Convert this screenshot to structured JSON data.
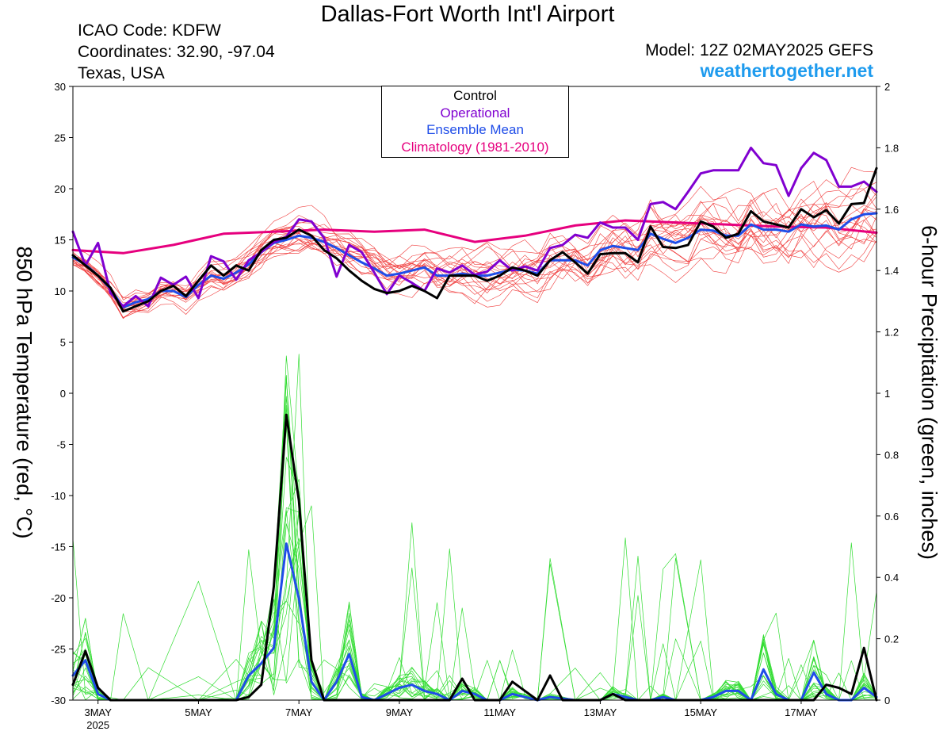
{
  "header": {
    "title": "Dallas-Fort Worth Int'l Airport",
    "icao": "ICAO Code: KDFW",
    "coords": "Coordinates: 32.90, -97.04",
    "region": "Texas, USA",
    "model": "Model: 12Z 02MAY2025 GEFS",
    "site": "weathertogether.net"
  },
  "colors": {
    "control": "#000000",
    "operational": "#8000d0",
    "ensemble_mean": "#1f4de8",
    "climatology": "#e6007e",
    "members_temp": "#f03c3c",
    "members_precip": "#33dd33",
    "site": "#1e9bee"
  },
  "chart_data": {
    "type": "line",
    "xlabel": "",
    "ylabel_left": "850 hPa Temperature (red, °C)",
    "ylabel_right": "6-hour Precipitation (green, inches)",
    "ylim_left": [
      -30,
      30
    ],
    "ylim_right": [
      0,
      2
    ],
    "yticks_left": [
      30,
      25,
      20,
      15,
      10,
      5,
      0,
      -5,
      -10,
      -15,
      -20,
      -25,
      -30
    ],
    "yticks_right": [
      2,
      1.8,
      1.6,
      1.4,
      1.2,
      1,
      0.8,
      0.6,
      0.4,
      0.2,
      0
    ],
    "xticks": [
      {
        "label": "3MAY",
        "sub": "2025",
        "day": 3
      },
      {
        "label": "5MAY",
        "day": 5
      },
      {
        "label": "7MAY",
        "day": 7
      },
      {
        "label": "9MAY",
        "day": 9
      },
      {
        "label": "11MAY",
        "day": 11
      },
      {
        "label": "13MAY",
        "day": 13
      },
      {
        "label": "15MAY",
        "day": 15
      },
      {
        "label": "17MAY",
        "day": 17
      }
    ],
    "x_range_days": [
      2.5,
      18.5
    ],
    "legend": [
      "Control",
      "Operational",
      "Ensemble Mean",
      "Climatology (1981-2010)"
    ],
    "series": [
      {
        "name": "Climatology (1981-2010)",
        "axis": "left",
        "x": [
          2.5,
          3.5,
          4.5,
          5.5,
          6.5,
          7.5,
          8.5,
          9.5,
          10.5,
          11.5,
          12.5,
          13.5,
          14.5,
          15.5,
          16.5,
          17.5,
          18.5
        ],
        "values": [
          14.0,
          13.7,
          14.5,
          15.6,
          15.8,
          16.0,
          15.8,
          16.0,
          14.8,
          15.4,
          16.4,
          16.9,
          16.7,
          16.5,
          16.3,
          16.2,
          15.7
        ]
      },
      {
        "name": "Control",
        "axis": "left",
        "x": [
          2.5,
          2.75,
          3.0,
          3.25,
          3.5,
          3.75,
          4.0,
          4.25,
          4.5,
          4.75,
          5.0,
          5.25,
          5.5,
          5.75,
          6.0,
          6.25,
          6.5,
          6.75,
          7.0,
          7.25,
          7.5,
          7.75,
          8.0,
          8.25,
          8.5,
          8.75,
          9.0,
          9.25,
          9.5,
          9.75,
          10.0,
          10.25,
          10.5,
          10.75,
          11.0,
          11.25,
          11.5,
          11.75,
          12.0,
          12.25,
          12.5,
          12.75,
          13.0,
          13.25,
          13.5,
          13.75,
          14.0,
          14.25,
          14.5,
          14.75,
          15.0,
          15.25,
          15.5,
          15.75,
          16.0,
          16.25,
          16.5,
          16.75,
          17.0,
          17.25,
          17.5,
          17.75,
          18.0,
          18.25,
          18.5
        ],
        "values": [
          13.5,
          12.5,
          11.5,
          10.3,
          8.0,
          8.5,
          9.0,
          10.0,
          10.5,
          9.5,
          11.0,
          12.5,
          11.5,
          12.5,
          12.0,
          14.0,
          15.0,
          15.2,
          16.0,
          15.4,
          14.0,
          13.2,
          12.0,
          11.0,
          10.2,
          9.8,
          10.0,
          10.5,
          10.0,
          9.3,
          11.5,
          11.5,
          11.5,
          11.0,
          11.5,
          12.3,
          12.0,
          11.5,
          13.0,
          13.8,
          12.8,
          11.7,
          13.6,
          13.7,
          13.7,
          12.8,
          16.3,
          14.3,
          14.2,
          14.5,
          16.8,
          16.3,
          15.2,
          15.6,
          17.8,
          16.8,
          16.5,
          16.2,
          18.0,
          17.2,
          17.9,
          16.6,
          18.5,
          18.6,
          22.0
        ]
      },
      {
        "name": "Operational",
        "axis": "left",
        "x": [
          2.5,
          2.75,
          3.0,
          3.25,
          3.5,
          3.75,
          4.0,
          4.25,
          4.5,
          4.75,
          5.0,
          5.25,
          5.5,
          5.75,
          6.0,
          6.25,
          6.5,
          6.75,
          7.0,
          7.25,
          7.5,
          7.75,
          8.0,
          8.25,
          8.5,
          8.75,
          9.0,
          9.25,
          9.5,
          9.75,
          10.0,
          10.25,
          10.5,
          10.75,
          11.0,
          11.25,
          11.5,
          11.75,
          12.0,
          12.25,
          12.5,
          12.75,
          13.0,
          13.25,
          13.5,
          13.75,
          14.0,
          14.25,
          14.5,
          14.75,
          15.0,
          15.25,
          15.5,
          15.75,
          16.0,
          16.25,
          16.5,
          16.75,
          17.0,
          17.25,
          17.5,
          17.75,
          18.0,
          18.25,
          18.5
        ],
        "values": [
          15.8,
          12.5,
          14.7,
          9.8,
          8.5,
          9.5,
          8.5,
          11.3,
          10.6,
          11.4,
          9.3,
          13.4,
          12.9,
          11.1,
          13.0,
          13.8,
          14.8,
          15.3,
          17.0,
          16.8,
          15.2,
          11.4,
          14.5,
          13.8,
          11.8,
          9.7,
          11.5,
          10.8,
          10.0,
          12.2,
          11.8,
          12.5,
          11.6,
          11.9,
          13.0,
          12.0,
          12.4,
          12.0,
          14.2,
          14.5,
          15.5,
          15.2,
          16.7,
          16.2,
          16.2,
          15.0,
          18.5,
          18.7,
          18.0,
          19.7,
          21.5,
          21.8,
          21.8,
          21.8,
          24.0,
          22.5,
          22.3,
          19.3,
          22.0,
          23.5,
          22.8,
          20.2,
          20.2,
          20.7,
          19.7
        ]
      },
      {
        "name": "Ensemble Mean",
        "axis": "left",
        "x": [
          2.5,
          2.75,
          3.0,
          3.25,
          3.5,
          3.75,
          4.0,
          4.25,
          4.5,
          4.75,
          5.0,
          5.25,
          5.5,
          5.75,
          6.0,
          6.25,
          6.5,
          6.75,
          7.0,
          7.25,
          7.5,
          7.75,
          8.0,
          8.25,
          8.5,
          8.75,
          9.0,
          9.25,
          9.5,
          9.75,
          10.0,
          10.25,
          10.5,
          10.75,
          11.0,
          11.25,
          11.5,
          11.75,
          12.0,
          12.25,
          12.5,
          12.75,
          13.0,
          13.25,
          13.5,
          13.75,
          14.0,
          14.25,
          14.5,
          14.75,
          15.0,
          15.25,
          15.5,
          15.75,
          16.0,
          16.25,
          16.5,
          16.75,
          17.0,
          17.25,
          17.5,
          17.75,
          18.0,
          18.25,
          18.5
        ],
        "values": [
          13.3,
          12.6,
          11.5,
          10.2,
          8.4,
          8.9,
          9.2,
          10.0,
          10.0,
          9.4,
          10.6,
          11.5,
          11.2,
          11.8,
          12.6,
          13.8,
          14.7,
          15.0,
          15.4,
          15.2,
          14.8,
          14.2,
          13.5,
          12.8,
          12.2,
          11.5,
          11.7,
          12.0,
          12.3,
          11.5,
          11.5,
          11.7,
          11.5,
          11.5,
          11.8,
          12.1,
          12.0,
          11.7,
          13.0,
          13.0,
          13.0,
          12.5,
          14.0,
          14.4,
          14.2,
          14.0,
          15.6,
          15.1,
          14.7,
          15.2,
          16.0,
          15.9,
          15.4,
          15.4,
          16.5,
          16.0,
          16.0,
          15.8,
          16.5,
          16.3,
          16.4,
          16.0,
          17.0,
          17.5,
          17.6
        ]
      },
      {
        "name": "Ensemble Mean precipitation",
        "axis": "right",
        "x": [
          2.5,
          2.75,
          3.0,
          3.25,
          3.5,
          4.0,
          5.0,
          5.75,
          6.0,
          6.25,
          6.5,
          6.75,
          7.0,
          7.25,
          7.5,
          7.75,
          8.0,
          8.25,
          8.5,
          8.75,
          9.0,
          9.25,
          9.5,
          9.75,
          10.0,
          10.25,
          10.5,
          10.75,
          11.0,
          11.25,
          11.5,
          11.75,
          12.0,
          12.5,
          13.0,
          13.25,
          13.5,
          13.75,
          14.0,
          14.25,
          14.5,
          15.0,
          15.25,
          15.5,
          15.75,
          16.0,
          16.25,
          16.5,
          16.75,
          17.0,
          17.25,
          17.5,
          17.75,
          18.0,
          18.25,
          18.5
        ],
        "values": [
          0.08,
          0.13,
          0.02,
          0.0,
          0.0,
          0.0,
          0.0,
          0.0,
          0.08,
          0.12,
          0.17,
          0.51,
          0.33,
          0.06,
          0.0,
          0.06,
          0.15,
          0.01,
          0.0,
          0.02,
          0.04,
          0.05,
          0.03,
          0.02,
          0.0,
          0.03,
          0.02,
          0.0,
          0.0,
          0.02,
          0.01,
          0.0,
          0.01,
          0.0,
          0.0,
          0.02,
          0.01,
          0.0,
          0.0,
          0.01,
          0.0,
          0.0,
          0.01,
          0.03,
          0.03,
          0.0,
          0.1,
          0.02,
          0.0,
          0.0,
          0.09,
          0.02,
          0.0,
          0.0,
          0.04,
          0.01
        ]
      },
      {
        "name": "Control precipitation",
        "axis": "right",
        "x": [
          2.5,
          2.75,
          3.0,
          3.25,
          3.5,
          4.0,
          5.0,
          5.75,
          6.0,
          6.25,
          6.5,
          6.75,
          7.0,
          7.25,
          7.5,
          7.75,
          8.0,
          8.5,
          9.0,
          9.5,
          9.75,
          10.0,
          10.25,
          10.5,
          10.75,
          11.0,
          11.25,
          11.5,
          11.75,
          12.0,
          12.25,
          12.5,
          13.0,
          13.25,
          13.5,
          14.0,
          15.0,
          16.0,
          16.5,
          17.0,
          17.25,
          17.5,
          17.75,
          18.0,
          18.25,
          18.5
        ],
        "values": [
          0.05,
          0.16,
          0.04,
          0.0,
          0.0,
          0.0,
          0.0,
          0.0,
          0.01,
          0.05,
          0.37,
          0.93,
          0.65,
          0.13,
          0.0,
          0.0,
          0.0,
          0.0,
          0.0,
          0.0,
          0.0,
          0.0,
          0.07,
          0.0,
          0.0,
          0.0,
          0.06,
          0.03,
          0.0,
          0.08,
          0.0,
          0.0,
          0.0,
          0.02,
          0.0,
          0.0,
          0.0,
          0.0,
          0.0,
          0.0,
          0.0,
          0.05,
          0.04,
          0.02,
          0.17,
          0.0
        ]
      }
    ]
  }
}
